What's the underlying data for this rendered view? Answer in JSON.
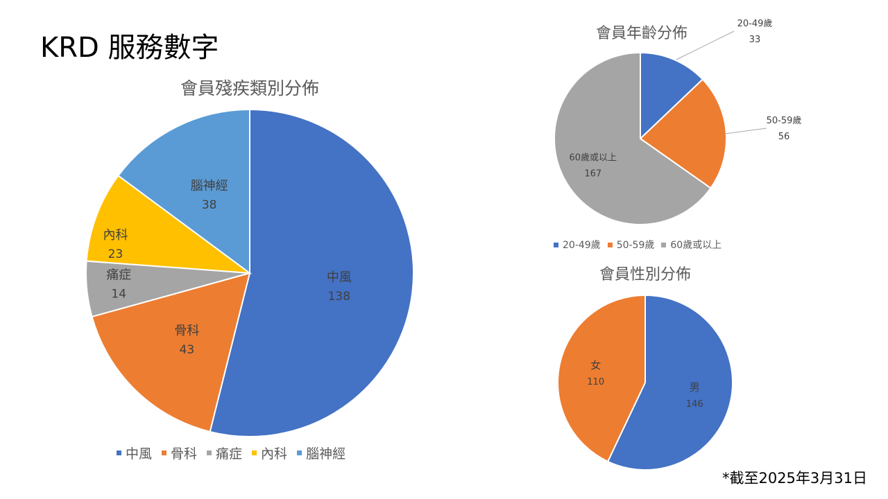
{
  "slide_title": "KRD 服務數字",
  "footnote": "*截至2025年3月31日",
  "chart_data": [
    {
      "type": "pie",
      "title": "會員殘疾類別分佈",
      "categories": [
        "中風",
        "骨科",
        "痛症",
        "內科",
        "腦神經"
      ],
      "values": [
        138,
        43,
        14,
        23,
        38
      ],
      "colors": [
        "#4472C4",
        "#ED7D31",
        "#A5A5A5",
        "#FFC000",
        "#5B9BD5"
      ],
      "label_colors": [
        "#404040",
        "#404040",
        "#404040",
        "#404040",
        "#404040"
      ],
      "legend": "bottom"
    },
    {
      "type": "pie",
      "title": "會員年齡分佈",
      "categories": [
        "20-49歲",
        "50-59歲",
        "60歲或以上"
      ],
      "values": [
        33,
        56,
        167
      ],
      "colors": [
        "#4472C4",
        "#ED7D31",
        "#A5A5A5"
      ],
      "legend": "bottom"
    },
    {
      "type": "pie",
      "title": "會員性別分佈",
      "categories": [
        "男",
        "女"
      ],
      "values": [
        146,
        110
      ],
      "colors": [
        "#4472C4",
        "#ED7D31"
      ]
    }
  ]
}
